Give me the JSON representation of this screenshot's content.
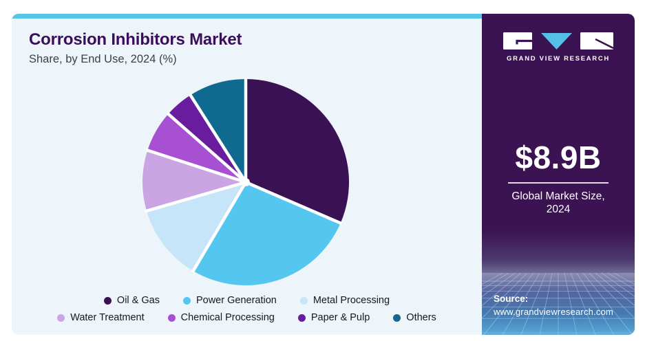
{
  "card": {
    "title": "Corrosion Inhibitors Market",
    "subtitle": "Share, by End Use, 2024 (%)",
    "background": "#edf5fa",
    "accent_strip_color": "#57c4e9"
  },
  "chart_data": {
    "type": "pie",
    "title": "Corrosion Inhibitors Market",
    "subtitle": "Share, by End Use, 2024 (%)",
    "unit": "%",
    "start_angle_deg": 0,
    "direction": "clockwise",
    "values_labeled_on_chart": false,
    "slices": [
      {
        "label": "Oil & Gas",
        "value": 31.5,
        "color": "#3a1254"
      },
      {
        "label": "Power Generation",
        "value": 27.0,
        "color": "#54c6f0"
      },
      {
        "label": "Metal Processing",
        "value": 12.0,
        "color": "#c6e5f8"
      },
      {
        "label": "Water Treatment",
        "value": 9.5,
        "color": "#cba4e4"
      },
      {
        "label": "Chemical Processing",
        "value": 6.5,
        "color": "#a750d2"
      },
      {
        "label": "Paper & Pulp",
        "value": 4.5,
        "color": "#691c9d"
      },
      {
        "label": "Others",
        "value": 9.0,
        "color": "#10698f"
      }
    ],
    "legend_rows": [
      [
        0,
        1,
        2
      ],
      [
        3,
        4,
        5,
        6
      ]
    ],
    "legend_position": "bottom"
  },
  "sidebar": {
    "background": "#3b1353",
    "logo": {
      "text": "GRAND VIEW RESEARCH",
      "triangle_color": "#55bfe5"
    },
    "market_size": {
      "value": "$8.9B",
      "label_line1": "Global Market Size,",
      "label_line2": "2024"
    },
    "source": {
      "label": "Source:",
      "url": "www.grandviewresearch.com"
    }
  }
}
